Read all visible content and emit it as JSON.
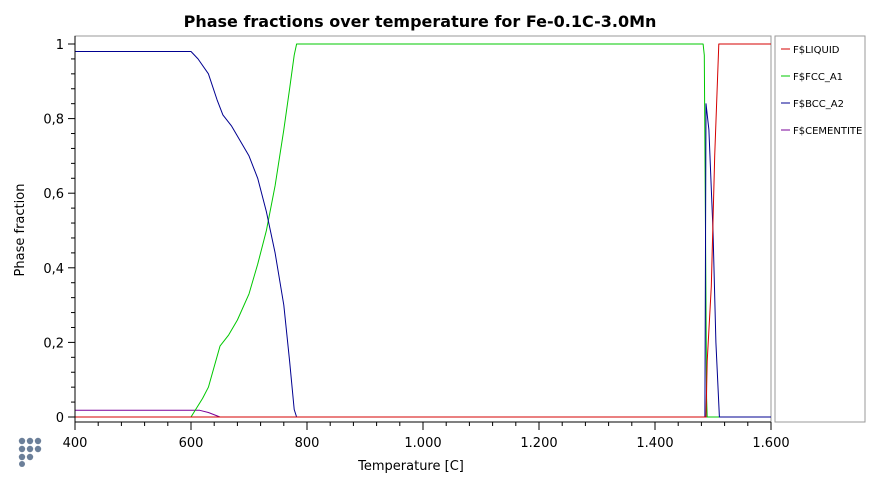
{
  "chart_data": {
    "type": "line",
    "title": "Phase fractions over temperature for Fe-0.1C-3.0Mn",
    "xlabel": "Temperature [C]",
    "ylabel": "Phase fraction",
    "xlim": [
      400,
      1600
    ],
    "ylim": [
      0,
      1
    ],
    "xticks": [
      400,
      600,
      800,
      1000,
      1200,
      1400,
      1600
    ],
    "xtick_labels": [
      "400",
      "600",
      "800",
      "1.000",
      "1.200",
      "1.400",
      "1.600"
    ],
    "yticks": [
      0,
      0.2,
      0.4,
      0.6,
      0.8,
      1
    ],
    "ytick_labels": [
      "0",
      "0,2",
      "0,4",
      "0,6",
      "0,8",
      "1"
    ],
    "grid": false,
    "legend_position": "right",
    "series": [
      {
        "name": "F$LIQUID",
        "color": "#d40000",
        "points": [
          [
            400,
            0
          ],
          [
            1488,
            0
          ],
          [
            1490,
            0.15
          ],
          [
            1497,
            0.35
          ],
          [
            1503,
            0.7
          ],
          [
            1510,
            1
          ],
          [
            1600,
            1
          ]
        ]
      },
      {
        "name": "F$FCC_A1",
        "color": "#00c800",
        "points": [
          [
            400,
            0
          ],
          [
            600,
            0
          ],
          [
            620,
            0.05
          ],
          [
            630,
            0.08
          ],
          [
            650,
            0.19
          ],
          [
            665,
            0.22
          ],
          [
            680,
            0.26
          ],
          [
            700,
            0.33
          ],
          [
            715,
            0.41
          ],
          [
            730,
            0.5
          ],
          [
            745,
            0.62
          ],
          [
            760,
            0.77
          ],
          [
            770,
            0.88
          ],
          [
            778,
            0.97
          ],
          [
            782,
            1
          ],
          [
            1483,
            1
          ],
          [
            1485,
            0.97
          ],
          [
            1487,
            0.5
          ],
          [
            1489,
            0.05
          ],
          [
            1490,
            0
          ],
          [
            1600,
            0
          ]
        ]
      },
      {
        "name": "F$BCC_A2",
        "color": "#000090",
        "points": [
          [
            400,
            0.98
          ],
          [
            600,
            0.98
          ],
          [
            612,
            0.96
          ],
          [
            630,
            0.92
          ],
          [
            645,
            0.85
          ],
          [
            655,
            0.81
          ],
          [
            670,
            0.78
          ],
          [
            685,
            0.74
          ],
          [
            700,
            0.7
          ],
          [
            715,
            0.64
          ],
          [
            730,
            0.55
          ],
          [
            745,
            0.44
          ],
          [
            760,
            0.3
          ],
          [
            770,
            0.15
          ],
          [
            778,
            0.02
          ],
          [
            782,
            0
          ],
          [
            1486,
            0
          ],
          [
            1488,
            0.84
          ],
          [
            1493,
            0.77
          ],
          [
            1500,
            0.5
          ],
          [
            1505,
            0.2
          ],
          [
            1511,
            0
          ],
          [
            1600,
            0
          ]
        ]
      },
      {
        "name": "F$CEMENTITE",
        "color": "#7a0099",
        "points": [
          [
            400,
            0.018
          ],
          [
            600,
            0.018
          ],
          [
            615,
            0.018
          ],
          [
            630,
            0.012
          ],
          [
            645,
            0.003
          ],
          [
            650,
            0
          ],
          [
            1600,
            0
          ]
        ]
      }
    ]
  },
  "logo": {
    "name": "software-logo-icon"
  }
}
